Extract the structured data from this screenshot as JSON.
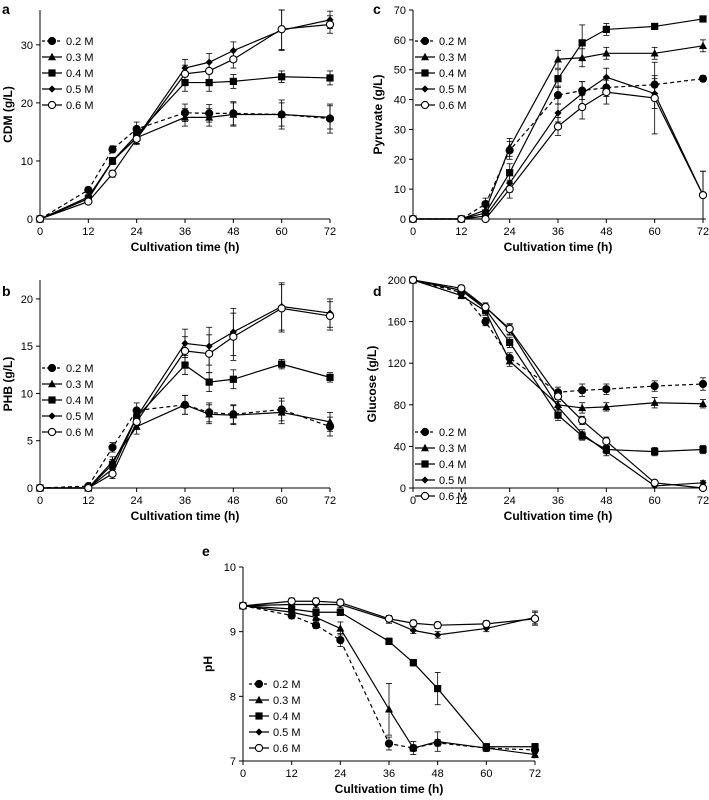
{
  "chart_data": [
    {
      "panel": "a",
      "type": "line",
      "xlabel": "Cultivation time (h)",
      "ylabel": "CDM (g/L)",
      "xlim": [
        0,
        72
      ],
      "ylim": [
        0,
        36
      ],
      "xticks": [
        0,
        12,
        24,
        36,
        48,
        60,
        72
      ],
      "yticks": [
        0,
        10,
        20,
        30
      ],
      "legend_position": "top-left",
      "series": [
        {
          "name": "0.2 M",
          "marker": "circle-filled",
          "dashed": true,
          "x": [
            0,
            12,
            18,
            24,
            36,
            42,
            48,
            60,
            72
          ],
          "values": [
            0,
            5,
            12,
            15.5,
            18.3,
            18.2,
            18.2,
            18.0,
            17.3
          ],
          "err": [
            0,
            0.5,
            0.6,
            1.2,
            1.5,
            1.5,
            2.0,
            2.5,
            2.5
          ]
        },
        {
          "name": "0.3 M",
          "marker": "triangle-filled",
          "dashed": false,
          "x": [
            0,
            12,
            18,
            24,
            36,
            42,
            48,
            60,
            72
          ],
          "values": [
            0,
            3.5,
            10,
            14,
            17.5,
            17.5,
            18,
            18,
            17.5
          ],
          "err": [
            0,
            0.4,
            0.6,
            1.0,
            1.5,
            1.5,
            2.0,
            2.0,
            2.0
          ]
        },
        {
          "name": "0.4 M",
          "marker": "square-filled",
          "dashed": false,
          "x": [
            0,
            12,
            18,
            24,
            36,
            42,
            48,
            60,
            72
          ],
          "values": [
            0,
            3.5,
            10,
            14.5,
            23.5,
            23.5,
            23.7,
            24.5,
            24.3
          ],
          "err": [
            0,
            0.4,
            0.6,
            1.0,
            1.5,
            1.5,
            1.2,
            1.0,
            1.2
          ]
        },
        {
          "name": "0.5 M",
          "marker": "diamond-filled",
          "dashed": false,
          "x": [
            0,
            12,
            18,
            24,
            36,
            42,
            48,
            60,
            72
          ],
          "values": [
            0,
            3.8,
            10,
            14,
            26,
            27,
            29,
            32.5,
            34.3
          ],
          "err": [
            0,
            0.4,
            0.6,
            1.0,
            1.5,
            1.5,
            1.5,
            3.5,
            1.5
          ]
        },
        {
          "name": "0.6 M",
          "marker": "circle-open",
          "dashed": false,
          "x": [
            0,
            12,
            18,
            24,
            36,
            42,
            48,
            60,
            72
          ],
          "values": [
            0,
            3,
            7.8,
            13.8,
            25,
            25.5,
            27.5,
            32.7,
            33.5
          ],
          "err": [
            0,
            0.4,
            0.6,
            1.0,
            1.5,
            1.5,
            1.5,
            3.5,
            1.5
          ]
        }
      ]
    },
    {
      "panel": "c",
      "type": "line",
      "xlabel": "Cultivation time (h)",
      "ylabel": "Pyruvate (g/L)",
      "xlim": [
        0,
        72
      ],
      "ylim": [
        0,
        70
      ],
      "xticks": [
        0,
        12,
        24,
        36,
        48,
        60,
        72
      ],
      "yticks": [
        0,
        10,
        20,
        30,
        40,
        50,
        60,
        70
      ],
      "legend_position": "top-left",
      "series": [
        {
          "name": "0.2 M",
          "marker": "circle-filled",
          "dashed": true,
          "x": [
            0,
            12,
            18,
            24,
            36,
            42,
            48,
            60,
            72
          ],
          "values": [
            0,
            0,
            5,
            23,
            41.5,
            43,
            44,
            45,
            47
          ],
          "err": [
            0,
            0,
            2,
            3,
            3,
            3,
            3,
            3,
            1
          ]
        },
        {
          "name": "0.3 M",
          "marker": "triangle-filled",
          "dashed": false,
          "x": [
            0,
            12,
            18,
            24,
            36,
            42,
            48,
            60,
            72
          ],
          "values": [
            0,
            0,
            3,
            24,
            53.5,
            54,
            55.5,
            55.5,
            58
          ],
          "err": [
            0,
            0,
            2,
            3,
            3,
            3,
            2,
            2,
            2
          ]
        },
        {
          "name": "0.4 M",
          "marker": "square-filled",
          "dashed": false,
          "x": [
            0,
            12,
            18,
            24,
            36,
            42,
            48,
            60,
            72
          ],
          "values": [
            0,
            0,
            2,
            15.5,
            47,
            59,
            63.5,
            64.5,
            67
          ],
          "err": [
            0,
            0,
            2,
            3,
            3,
            6,
            2,
            1,
            1
          ]
        },
        {
          "name": "0.5 M",
          "marker": "diamond-filled",
          "dashed": false,
          "x": [
            0,
            12,
            18,
            24,
            36,
            42,
            48,
            60,
            72
          ],
          "values": [
            0,
            0,
            1,
            12,
            35.5,
            42,
            47.5,
            42,
            8
          ],
          "err": [
            0,
            0,
            1,
            3,
            3,
            4,
            3,
            5,
            8
          ]
        },
        {
          "name": "0.6 M",
          "marker": "circle-open",
          "dashed": false,
          "x": [
            0,
            12,
            18,
            24,
            36,
            42,
            48,
            60,
            72
          ],
          "values": [
            0,
            0,
            0,
            10,
            31,
            37.5,
            42.5,
            40.5,
            8
          ],
          "err": [
            0,
            0,
            1,
            3,
            3,
            4,
            4,
            12,
            8
          ]
        }
      ]
    },
    {
      "panel": "b",
      "type": "line",
      "xlabel": "Cultivation time (h)",
      "ylabel": "PHB (g/L)",
      "xlim": [
        0,
        72
      ],
      "ylim": [
        0,
        22
      ],
      "xticks": [
        0,
        12,
        24,
        36,
        48,
        60,
        72
      ],
      "yticks": [
        0,
        5,
        10,
        15,
        20
      ],
      "legend_position": "top-left",
      "series": [
        {
          "name": "0.2 M",
          "marker": "circle-filled",
          "dashed": true,
          "x": [
            0,
            12,
            18,
            24,
            36,
            42,
            48,
            60,
            72
          ],
          "values": [
            0,
            0.2,
            4.3,
            8.2,
            8.8,
            8,
            7.8,
            8.3,
            6.5
          ],
          "err": [
            0,
            0.2,
            0.5,
            0.8,
            1.0,
            1.0,
            1.0,
            1.2,
            1.0
          ]
        },
        {
          "name": "0.3 M",
          "marker": "triangle-filled",
          "dashed": false,
          "x": [
            0,
            12,
            18,
            24,
            36,
            42,
            48,
            60,
            72
          ],
          "values": [
            0,
            0,
            2.8,
            6.5,
            8.8,
            7.8,
            7.7,
            8,
            7
          ],
          "err": [
            0,
            0.2,
            0.5,
            0.8,
            1.0,
            1.0,
            1.0,
            1.2,
            1.0
          ]
        },
        {
          "name": "0.4 M",
          "marker": "square-filled",
          "dashed": false,
          "x": [
            0,
            12,
            18,
            24,
            36,
            42,
            48,
            60,
            72
          ],
          "values": [
            0,
            0,
            2.5,
            7.5,
            13,
            11.2,
            11.5,
            13.1,
            11.7
          ],
          "err": [
            0,
            0.2,
            0.5,
            0.8,
            1.0,
            1.0,
            1.0,
            0.5,
            0.5
          ]
        },
        {
          "name": "0.5 M",
          "marker": "diamond-filled",
          "dashed": false,
          "x": [
            0,
            12,
            18,
            24,
            36,
            42,
            48,
            60,
            72
          ],
          "values": [
            0,
            0,
            2,
            7.5,
            15.3,
            15,
            16.5,
            19.2,
            18.5
          ],
          "err": [
            0,
            0.2,
            0.5,
            0.8,
            1.5,
            2.0,
            2.5,
            2.5,
            1.5
          ]
        },
        {
          "name": "0.6 M",
          "marker": "circle-open",
          "dashed": false,
          "x": [
            0,
            12,
            18,
            24,
            36,
            42,
            48,
            60,
            72
          ],
          "values": [
            0,
            0,
            1.5,
            7,
            14.5,
            14.2,
            16,
            19,
            18.2
          ],
          "err": [
            0,
            0.2,
            0.5,
            0.8,
            1.5,
            2.0,
            2.5,
            2.5,
            1.5
          ]
        }
      ]
    },
    {
      "panel": "d",
      "type": "line",
      "xlabel": "Cultivation time (h)",
      "ylabel": "Glucose (g/L)",
      "xlim": [
        0,
        72
      ],
      "ylim": [
        0,
        200
      ],
      "xticks": [
        0,
        12,
        24,
        36,
        48,
        60,
        72
      ],
      "yticks": [
        0,
        40,
        80,
        120,
        160,
        200
      ],
      "legend_position": "middle-left",
      "series": [
        {
          "name": "0.2 M",
          "marker": "circle-filled",
          "dashed": true,
          "x": [
            0,
            12,
            18,
            24,
            36,
            42,
            48,
            60,
            72
          ],
          "values": [
            200,
            188,
            160,
            125,
            92,
            94,
            95,
            98,
            100
          ],
          "err": [
            0,
            3,
            4,
            5,
            5,
            6,
            5,
            5,
            6
          ]
        },
        {
          "name": "0.3 M",
          "marker": "triangle-filled",
          "dashed": false,
          "x": [
            0,
            12,
            18,
            24,
            36,
            42,
            48,
            60,
            72
          ],
          "values": [
            200,
            185,
            170,
            122,
            80,
            77,
            78,
            82,
            81
          ],
          "err": [
            0,
            3,
            4,
            5,
            5,
            5,
            4,
            5,
            4
          ]
        },
        {
          "name": "0.4 M",
          "marker": "square-filled",
          "dashed": false,
          "x": [
            0,
            12,
            18,
            24,
            36,
            42,
            48,
            60,
            72
          ],
          "values": [
            200,
            190,
            172,
            140,
            70,
            50,
            37,
            35,
            37
          ],
          "err": [
            0,
            3,
            4,
            5,
            5,
            4,
            4,
            4,
            4
          ]
        },
        {
          "name": "0.5 M",
          "marker": "diamond-filled",
          "dashed": false,
          "x": [
            0,
            12,
            18,
            24,
            36,
            42,
            48,
            60,
            72
          ],
          "values": [
            200,
            190,
            174,
            152,
            78,
            52,
            35,
            2,
            5
          ],
          "err": [
            0,
            3,
            4,
            5,
            5,
            4,
            4,
            2,
            2
          ]
        },
        {
          "name": "0.6 M",
          "marker": "circle-open",
          "dashed": false,
          "x": [
            0,
            12,
            18,
            24,
            36,
            42,
            48,
            60,
            72
          ],
          "values": [
            200,
            192,
            174,
            153,
            88,
            65,
            45,
            5,
            0
          ],
          "err": [
            0,
            3,
            4,
            5,
            5,
            4,
            4,
            2,
            2
          ]
        }
      ]
    },
    {
      "panel": "e",
      "type": "line",
      "xlabel": "Cultivation time (h)",
      "ylabel": "pH",
      "xlim": [
        0,
        72
      ],
      "ylim": [
        7,
        10
      ],
      "xticks": [
        0,
        12,
        24,
        36,
        48,
        60,
        72
      ],
      "yticks": [
        7,
        8,
        9,
        10
      ],
      "legend_position": "bottom-left",
      "series": [
        {
          "name": "0.2 M",
          "marker": "circle-filled",
          "dashed": true,
          "x": [
            0,
            12,
            18,
            24,
            36,
            42,
            48,
            60,
            72
          ],
          "values": [
            9.4,
            9.25,
            9.1,
            8.87,
            7.27,
            7.2,
            7.28,
            7.2,
            7.17
          ],
          "err": [
            0,
            0.05,
            0.05,
            0.1,
            0.1,
            0.05,
            0.05,
            0.05,
            0.05
          ]
        },
        {
          "name": "0.3 M",
          "marker": "triangle-filled",
          "dashed": false,
          "x": [
            0,
            12,
            18,
            24,
            36,
            42,
            48,
            60,
            72
          ],
          "values": [
            9.4,
            9.3,
            9.22,
            9.05,
            7.8,
            7.2,
            7.3,
            7.2,
            7.1
          ],
          "err": [
            0,
            0.05,
            0.05,
            0.1,
            0.4,
            0.1,
            0.15,
            0.05,
            0.05
          ]
        },
        {
          "name": "0.4 M",
          "marker": "square-filled",
          "dashed": false,
          "x": [
            0,
            12,
            18,
            24,
            36,
            42,
            48,
            60,
            72
          ],
          "values": [
            9.4,
            9.35,
            9.3,
            9.3,
            8.85,
            8.52,
            8.12,
            7.22,
            7.22
          ],
          "err": [
            0,
            0.05,
            0.05,
            0.05,
            0.05,
            0.05,
            0.25,
            0.05,
            0.05
          ]
        },
        {
          "name": "0.5 M",
          "marker": "diamond-filled",
          "dashed": false,
          "x": [
            0,
            12,
            18,
            24,
            36,
            42,
            48,
            60,
            72
          ],
          "values": [
            9.4,
            9.42,
            9.42,
            9.42,
            9.18,
            9.02,
            8.95,
            9.05,
            9.22
          ],
          "err": [
            0,
            0.05,
            0.05,
            0.05,
            0.05,
            0.05,
            0.05,
            0.05,
            0.1
          ]
        },
        {
          "name": "0.6 M",
          "marker": "circle-open",
          "dashed": false,
          "x": [
            0,
            12,
            18,
            24,
            36,
            42,
            48,
            60,
            72
          ],
          "values": [
            9.4,
            9.47,
            9.47,
            9.45,
            9.2,
            9.13,
            9.1,
            9.12,
            9.2
          ],
          "err": [
            0,
            0.05,
            0.05,
            0.05,
            0.05,
            0.05,
            0.05,
            0.05,
            0.1
          ]
        }
      ]
    }
  ]
}
